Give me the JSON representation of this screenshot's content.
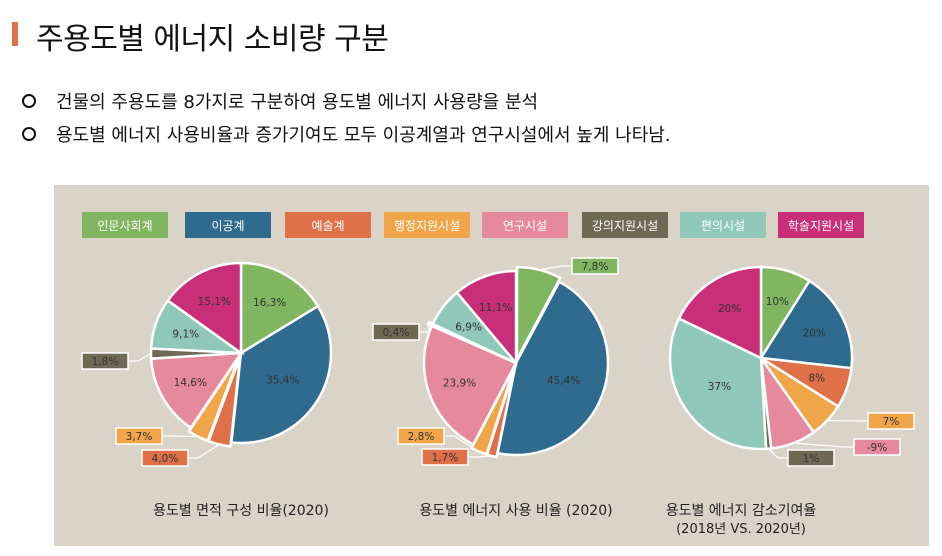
{
  "title": "주용도별 에너지 소비량 구분",
  "bullets": [
    "건물의 주용도를 8가지로 구분하여 용도별 에너지 사용량을 분석",
    "용도별 에너지 사용비율과 증가기여도 모두 이공계열과 연구시설에서 높게 나타남."
  ],
  "legend": [
    {
      "label": "인문사회계",
      "color": "#7fb65f"
    },
    {
      "label": "이공계",
      "color": "#2e6b8e"
    },
    {
      "label": "예술계",
      "color": "#e07048"
    },
    {
      "label": "행정지원시설",
      "color": "#f0a548"
    },
    {
      "label": "연구시설",
      "color": "#e6899c"
    },
    {
      "label": "강의지원시설",
      "color": "#6e6855"
    },
    {
      "label": "편의시설",
      "color": "#8fc8b8"
    },
    {
      "label": "학술지원시설",
      "color": "#c92e78"
    }
  ],
  "chart_data": [
    {
      "type": "pie",
      "title": "용도별 면적 구성 비율(2020)",
      "categories": [
        "인문사회계",
        "이공계",
        "예술계",
        "행정지원시설",
        "연구시설",
        "강의지원시설",
        "편의시설",
        "학술지원시설"
      ],
      "values": [
        16.3,
        35.4,
        4.0,
        3.7,
        14.6,
        1.8,
        9.1,
        15.1
      ],
      "labels": [
        "16,3%",
        "35,4%",
        "4,0%",
        "3,7%",
        "14,6%",
        "1,8%",
        "9,1%",
        "15,1%"
      ]
    },
    {
      "type": "pie",
      "title": "용도별 에너지 사용 비율 (2020)",
      "categories": [
        "인문사회계",
        "이공계",
        "예술계",
        "행정지원시설",
        "연구시설",
        "강의지원시설",
        "편의시설",
        "학술지원시설"
      ],
      "values": [
        7.8,
        45.4,
        1.7,
        2.8,
        23.9,
        0.4,
        6.9,
        11.1
      ],
      "labels": [
        "7,8%",
        "45,4%",
        "1,7%",
        "2,8%",
        "23,9%",
        "0,4%",
        "6,9%",
        "11,1%"
      ]
    },
    {
      "type": "pie",
      "title": "용도별 에너지 감소기여율",
      "subtitle": "(2018년 VS. 2020년)",
      "categories": [
        "인문사회계",
        "이공계",
        "예술계",
        "행정지원시설",
        "연구시설",
        "강의지원시설",
        "편의시설",
        "학술지원시설"
      ],
      "values": [
        10,
        20,
        8,
        7,
        9,
        1,
        37,
        20
      ],
      "labels": [
        "10%",
        "20%",
        "8%",
        "7%",
        "-9%",
        "1%",
        "37%",
        "20%"
      ]
    }
  ]
}
